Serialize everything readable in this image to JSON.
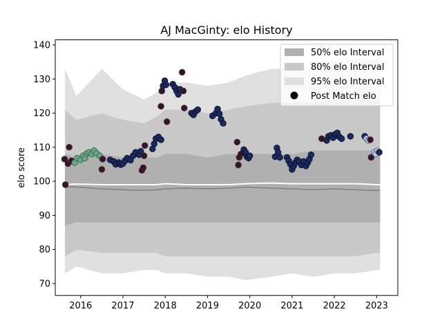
{
  "chart_data": {
    "type": "line",
    "title": "AJ MacGinty: elo History",
    "ylabel": "elo score",
    "xlabel": "",
    "xlim": [
      2015.4,
      2023.5
    ],
    "ylim": [
      66.5,
      141.5
    ],
    "x_ticks": [
      2016,
      2017,
      2018,
      2019,
      2020,
      2021,
      2022,
      2023
    ],
    "x_tick_labels": [
      "2016",
      "2017",
      "2018",
      "2019",
      "2020",
      "2021",
      "2022",
      "2023"
    ],
    "y_ticks": [
      70,
      80,
      90,
      100,
      110,
      120,
      130,
      140
    ],
    "y_tick_labels": [
      "70",
      "80",
      "90",
      "100",
      "110",
      "120",
      "130",
      "140"
    ],
    "grid": false,
    "legend_position": "top-right",
    "legend": [
      {
        "label": "50% elo Interval",
        "kind": "patch",
        "color": "#b0b0b0"
      },
      {
        "label": "80% elo Interval",
        "kind": "patch",
        "color": "#c8c8c8"
      },
      {
        "label": "95% elo Interval",
        "kind": "patch",
        "color": "#e0e0e0"
      },
      {
        "label": "Post Match elo",
        "kind": "marker",
        "color": "#000000"
      }
    ],
    "colors": {
      "band95": "#e0e0e0",
      "band80": "#c8c8c8",
      "band50": "#b0b0b0",
      "median_line": "#808080",
      "mean_line": "#ffffff",
      "point_dark": "#2a1a2e",
      "point_navy": "#1a2a5e",
      "point_green": "#6aa883",
      "point_pale": "#c0c8dc"
    },
    "bands": {
      "x": [
        2015.63,
        2015.9,
        2016.5,
        2017.0,
        2017.5,
        2017.8,
        2018.0,
        2018.5,
        2019.0,
        2019.5,
        2019.9,
        2020.5,
        2021.0,
        2021.5,
        2022.0,
        2022.5,
        2023.0,
        2023.08
      ],
      "upper95": [
        133,
        125,
        133,
        127,
        124,
        126,
        129,
        129,
        128,
        129,
        131,
        133,
        133,
        134,
        135,
        136,
        136,
        136
      ],
      "lower95": [
        73,
        75,
        73,
        73,
        74,
        74,
        73,
        73,
        72,
        72,
        71,
        72,
        73,
        72,
        73,
        73,
        74,
        74
      ],
      "upper80": [
        121,
        118,
        120,
        118,
        117,
        119,
        121,
        121,
        120,
        121,
        122,
        123,
        123,
        123,
        124,
        124,
        124,
        124
      ],
      "lower80": [
        78,
        80,
        79,
        79,
        79,
        79,
        78,
        78,
        78,
        78,
        78,
        78,
        78,
        78,
        78,
        78,
        79,
        79
      ],
      "upper50": [
        108,
        107,
        108,
        107,
        107,
        107,
        108,
        108,
        107,
        108,
        108,
        108,
        108,
        109,
        109,
        109,
        109,
        109
      ],
      "lower50": [
        87,
        88,
        88,
        88,
        88,
        88,
        88,
        88,
        88,
        88,
        88,
        88,
        88,
        88,
        88,
        88,
        88,
        88
      ],
      "median": [
        98.5,
        98.3,
        97.8,
        97.5,
        97.3,
        97.5,
        97.8,
        98.0,
        97.8,
        98.0,
        98.3,
        98.0,
        97.8,
        97.5,
        97.8,
        97.5,
        97.3,
        97.3
      ],
      "mean": [
        99.0,
        99.2,
        99.0,
        99.0,
        99.0,
        99.0,
        99.3,
        99.0,
        99.0,
        99.0,
        99.3,
        99.5,
        99.3,
        99.3,
        99.3,
        99.3,
        99.0,
        99.0
      ]
    },
    "points": [
      {
        "x": 2015.64,
        "y": 99.0,
        "c": "dark"
      },
      {
        "x": 2015.62,
        "y": 106.5,
        "c": "dark"
      },
      {
        "x": 2015.7,
        "y": 105.2,
        "c": "dark"
      },
      {
        "x": 2015.73,
        "y": 110.0,
        "c": "dark"
      },
      {
        "x": 2015.78,
        "y": 106.0,
        "c": "dark"
      },
      {
        "x": 2015.86,
        "y": 105.5,
        "c": "green"
      },
      {
        "x": 2015.92,
        "y": 106.8,
        "c": "green"
      },
      {
        "x": 2016.0,
        "y": 106.3,
        "c": "green"
      },
      {
        "x": 2016.06,
        "y": 107.5,
        "c": "green"
      },
      {
        "x": 2016.1,
        "y": 106.8,
        "c": "green"
      },
      {
        "x": 2016.15,
        "y": 108.2,
        "c": "green"
      },
      {
        "x": 2016.2,
        "y": 108.5,
        "c": "green"
      },
      {
        "x": 2016.26,
        "y": 108.0,
        "c": "green"
      },
      {
        "x": 2016.32,
        "y": 109.0,
        "c": "green"
      },
      {
        "x": 2016.38,
        "y": 108.2,
        "c": "green"
      },
      {
        "x": 2016.45,
        "y": 107.5,
        "c": "green"
      },
      {
        "x": 2016.5,
        "y": 103.5,
        "c": "dark"
      },
      {
        "x": 2016.52,
        "y": 106.5,
        "c": "dark"
      },
      {
        "x": 2016.7,
        "y": 106.3,
        "c": "navy"
      },
      {
        "x": 2016.78,
        "y": 105.8,
        "c": "navy"
      },
      {
        "x": 2016.83,
        "y": 105.0,
        "c": "navy"
      },
      {
        "x": 2016.9,
        "y": 105.5,
        "c": "navy"
      },
      {
        "x": 2016.95,
        "y": 104.9,
        "c": "navy"
      },
      {
        "x": 2017.0,
        "y": 105.2,
        "c": "navy"
      },
      {
        "x": 2017.05,
        "y": 106.0,
        "c": "navy"
      },
      {
        "x": 2017.1,
        "y": 106.8,
        "c": "navy"
      },
      {
        "x": 2017.18,
        "y": 106.2,
        "c": "navy"
      },
      {
        "x": 2017.24,
        "y": 107.5,
        "c": "navy"
      },
      {
        "x": 2017.3,
        "y": 108.5,
        "c": "navy"
      },
      {
        "x": 2017.38,
        "y": 107.8,
        "c": "navy"
      },
      {
        "x": 2017.42,
        "y": 108.8,
        "c": "navy"
      },
      {
        "x": 2017.45,
        "y": 103.2,
        "c": "dark"
      },
      {
        "x": 2017.48,
        "y": 104.0,
        "c": "dark"
      },
      {
        "x": 2017.5,
        "y": 107.5,
        "c": "dark"
      },
      {
        "x": 2017.52,
        "y": 110.5,
        "c": "dark"
      },
      {
        "x": 2017.7,
        "y": 109.5,
        "c": "navy"
      },
      {
        "x": 2017.74,
        "y": 111.0,
        "c": "navy"
      },
      {
        "x": 2017.78,
        "y": 112.5,
        "c": "navy"
      },
      {
        "x": 2017.84,
        "y": 113.0,
        "c": "navy"
      },
      {
        "x": 2017.9,
        "y": 112.2,
        "c": "navy"
      },
      {
        "x": 2017.9,
        "y": 122.0,
        "c": "dark"
      },
      {
        "x": 2017.92,
        "y": 126.5,
        "c": "dark"
      },
      {
        "x": 2017.95,
        "y": 128.0,
        "c": "navy"
      },
      {
        "x": 2017.99,
        "y": 129.5,
        "c": "navy"
      },
      {
        "x": 2018.02,
        "y": 128.3,
        "c": "navy"
      },
      {
        "x": 2018.04,
        "y": 117.5,
        "c": "dark"
      },
      {
        "x": 2018.18,
        "y": 128.5,
        "c": "navy"
      },
      {
        "x": 2018.23,
        "y": 127.5,
        "c": "navy"
      },
      {
        "x": 2018.27,
        "y": 126.5,
        "c": "navy"
      },
      {
        "x": 2018.31,
        "y": 125.5,
        "c": "navy"
      },
      {
        "x": 2018.35,
        "y": 127.0,
        "c": "navy"
      },
      {
        "x": 2018.4,
        "y": 132.0,
        "c": "dark"
      },
      {
        "x": 2018.43,
        "y": 126.5,
        "c": "dark"
      },
      {
        "x": 2018.45,
        "y": 121.5,
        "c": "dark"
      },
      {
        "x": 2018.62,
        "y": 120.0,
        "c": "navy"
      },
      {
        "x": 2018.67,
        "y": 119.5,
        "c": "navy"
      },
      {
        "x": 2018.72,
        "y": 120.5,
        "c": "navy"
      },
      {
        "x": 2018.77,
        "y": 121.0,
        "c": "navy"
      },
      {
        "x": 2019.12,
        "y": 119.2,
        "c": "navy"
      },
      {
        "x": 2019.2,
        "y": 120.0,
        "c": "navy"
      },
      {
        "x": 2019.24,
        "y": 121.2,
        "c": "navy"
      },
      {
        "x": 2019.28,
        "y": 119.8,
        "c": "navy"
      },
      {
        "x": 2019.32,
        "y": 118.2,
        "c": "navy"
      },
      {
        "x": 2019.37,
        "y": 117.0,
        "c": "navy"
      },
      {
        "x": 2019.7,
        "y": 111.5,
        "c": "dark"
      },
      {
        "x": 2019.73,
        "y": 104.8,
        "c": "dark"
      },
      {
        "x": 2019.75,
        "y": 107.0,
        "c": "dark"
      },
      {
        "x": 2019.79,
        "y": 108.0,
        "c": "dark"
      },
      {
        "x": 2019.86,
        "y": 109.3,
        "c": "navy"
      },
      {
        "x": 2019.9,
        "y": 108.5,
        "c": "navy"
      },
      {
        "x": 2019.93,
        "y": 107.2,
        "c": "navy"
      },
      {
        "x": 2019.97,
        "y": 106.8,
        "c": "navy"
      },
      {
        "x": 2020.0,
        "y": 107.5,
        "c": "navy"
      },
      {
        "x": 2020.6,
        "y": 107.2,
        "c": "navy"
      },
      {
        "x": 2020.64,
        "y": 109.8,
        "c": "navy"
      },
      {
        "x": 2020.67,
        "y": 108.5,
        "c": "navy"
      },
      {
        "x": 2020.71,
        "y": 107.0,
        "c": "navy"
      },
      {
        "x": 2020.88,
        "y": 107.0,
        "c": "navy"
      },
      {
        "x": 2020.92,
        "y": 106.0,
        "c": "navy"
      },
      {
        "x": 2020.96,
        "y": 105.0,
        "c": "navy"
      },
      {
        "x": 2021.0,
        "y": 103.5,
        "c": "navy"
      },
      {
        "x": 2021.04,
        "y": 104.5,
        "c": "navy"
      },
      {
        "x": 2021.08,
        "y": 105.5,
        "c": "navy"
      },
      {
        "x": 2021.12,
        "y": 106.3,
        "c": "navy"
      },
      {
        "x": 2021.17,
        "y": 105.8,
        "c": "navy"
      },
      {
        "x": 2021.22,
        "y": 104.8,
        "c": "navy"
      },
      {
        "x": 2021.27,
        "y": 105.8,
        "c": "navy"
      },
      {
        "x": 2021.33,
        "y": 104.5,
        "c": "navy"
      },
      {
        "x": 2021.37,
        "y": 105.5,
        "c": "navy"
      },
      {
        "x": 2021.41,
        "y": 106.5,
        "c": "navy"
      },
      {
        "x": 2021.45,
        "y": 107.8,
        "c": "navy"
      },
      {
        "x": 2021.7,
        "y": 112.5,
        "c": "dark"
      },
      {
        "x": 2021.82,
        "y": 112.0,
        "c": "navy"
      },
      {
        "x": 2021.86,
        "y": 113.2,
        "c": "navy"
      },
      {
        "x": 2021.92,
        "y": 113.5,
        "c": "navy"
      },
      {
        "x": 2021.97,
        "y": 112.8,
        "c": "navy"
      },
      {
        "x": 2022.02,
        "y": 113.8,
        "c": "navy"
      },
      {
        "x": 2022.07,
        "y": 114.2,
        "c": "navy"
      },
      {
        "x": 2022.12,
        "y": 113.0,
        "c": "navy"
      },
      {
        "x": 2022.17,
        "y": 112.5,
        "c": "navy"
      },
      {
        "x": 2022.38,
        "y": 113.2,
        "c": "navy"
      },
      {
        "x": 2022.72,
        "y": 113.2,
        "c": "navy"
      },
      {
        "x": 2022.76,
        "y": 112.5,
        "c": "pale"
      },
      {
        "x": 2022.8,
        "y": 112.0,
        "c": "pale"
      },
      {
        "x": 2022.85,
        "y": 112.2,
        "c": "dark"
      },
      {
        "x": 2022.87,
        "y": 107.0,
        "c": "dark"
      },
      {
        "x": 2022.94,
        "y": 108.5,
        "c": "pale"
      },
      {
        "x": 2022.98,
        "y": 108.0,
        "c": "pale"
      },
      {
        "x": 2023.02,
        "y": 109.0,
        "c": "pale"
      },
      {
        "x": 2023.06,
        "y": 108.5,
        "c": "navy"
      }
    ]
  }
}
